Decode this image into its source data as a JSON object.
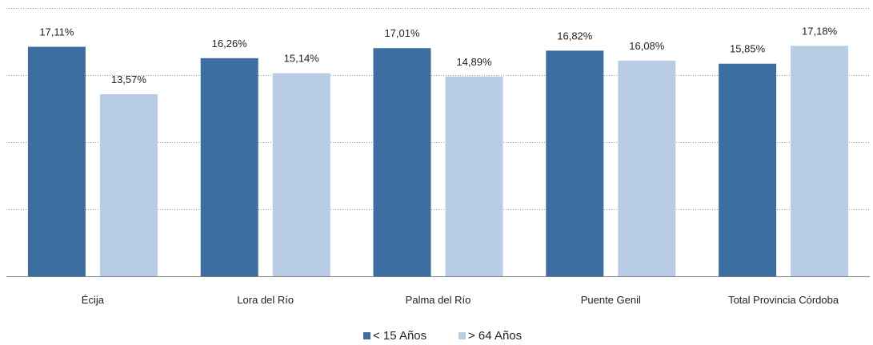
{
  "chart_data": {
    "type": "bar",
    "categories": [
      "Écija",
      "Lora del Río",
      "Palma del Río",
      "Puente Genil",
      "Total Provincia Córdoba"
    ],
    "series": [
      {
        "name": "< 15 Años",
        "color": "#3c6e9f",
        "values": [
          17.11,
          16.26,
          17.01,
          16.82,
          15.85
        ],
        "labels": [
          "17,11%",
          "16,26%",
          "17,01%",
          "16,82%",
          "15,85%"
        ]
      },
      {
        "name": "> 64 Años",
        "color": "#b8cce3",
        "values": [
          13.57,
          15.14,
          14.89,
          16.08,
          17.18
        ],
        "labels": [
          "13,57%",
          "15,14%",
          "14,89%",
          "16,08%",
          "17,18%"
        ]
      }
    ],
    "ylim": [
      0,
      20
    ],
    "grid": true,
    "legend": "bottom-center",
    "title": "",
    "xlabel": "",
    "ylabel": ""
  }
}
